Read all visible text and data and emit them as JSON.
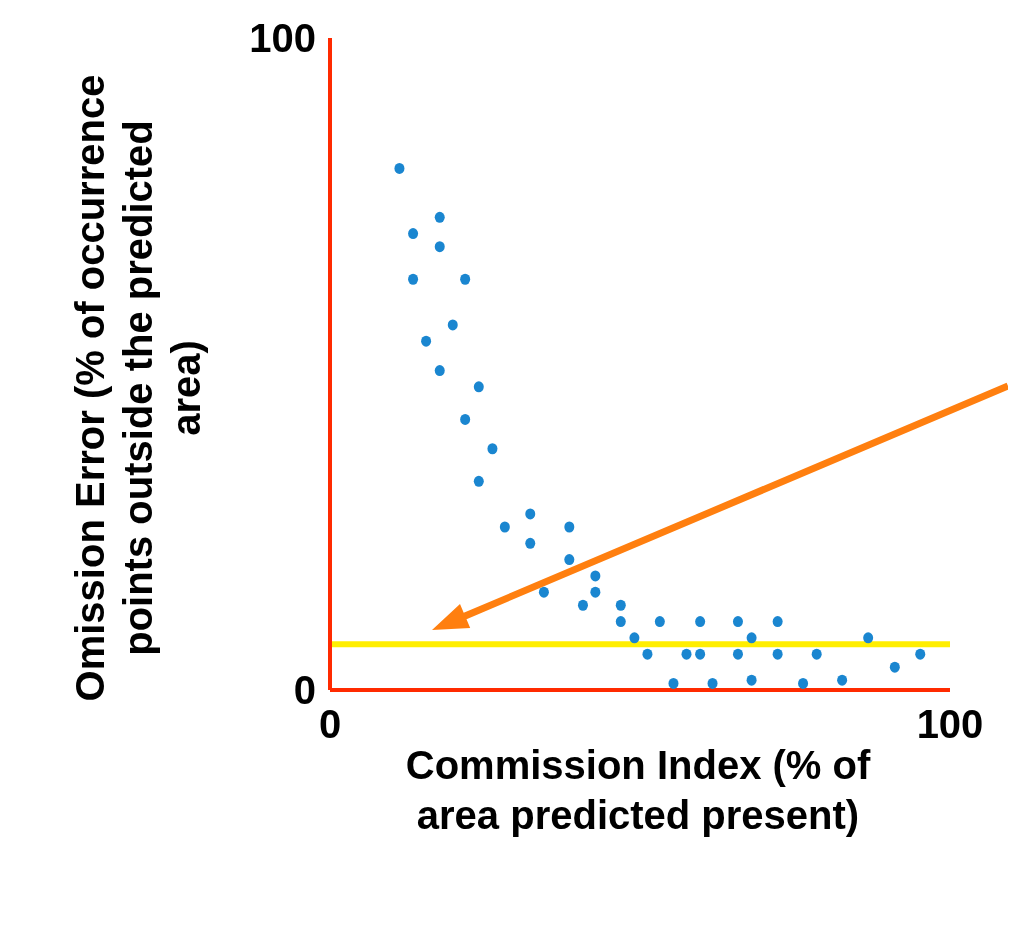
{
  "chart_data": {
    "type": "scatter",
    "xlabel": "Commission Index (% of area predicted present)",
    "ylabel": "Omission Error (% of occurrence points outside the predicted area)",
    "xlim": [
      0,
      100
    ],
    "ylim": [
      0,
      100
    ],
    "xticks": [
      0,
      100
    ],
    "yticks": [
      0,
      100
    ],
    "grid": false,
    "legend": false,
    "marker": "circle",
    "series": [
      {
        "color": "#1a86d0",
        "x": [
          11.2,
          13.4,
          13.4,
          15.5,
          17.7,
          17.7,
          17.7,
          19.8,
          21.8,
          21.8,
          24,
          24,
          26.2,
          28.2,
          32.3,
          32.3,
          34.5,
          38.6,
          38.6,
          40.8,
          42.8,
          42.8,
          46.9,
          46.9,
          49.1,
          51.2,
          53.2,
          55.4,
          57.5,
          59.7,
          59.7,
          61.7,
          65.8,
          65.8,
          68,
          68,
          72.2,
          72.2,
          76.3,
          78.5,
          82.6,
          86.8,
          91.1,
          95.2
        ],
        "values": [
          80,
          70,
          63,
          53.5,
          72.5,
          68,
          49,
          56,
          63,
          41.5,
          46.5,
          32,
          37,
          25,
          27,
          22.5,
          15,
          25,
          20,
          13,
          17.5,
          15,
          13,
          10.5,
          8,
          5.5,
          10.5,
          1,
          5.5,
          10.5,
          5.5,
          1,
          10.5,
          5.5,
          8,
          1.5,
          10.5,
          5.5,
          1,
          5.5,
          1.5,
          8,
          3.5,
          5.5
        ]
      }
    ],
    "ref_lines": [
      {
        "axis": "y",
        "value": 7,
        "color": "#ffee00"
      }
    ]
  }
}
